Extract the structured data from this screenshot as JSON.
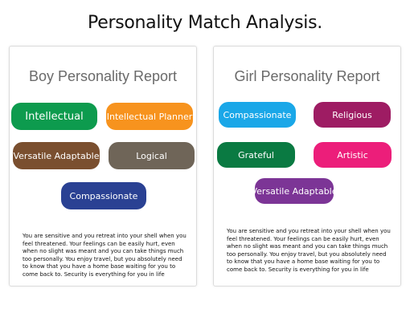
{
  "page": {
    "title": "Personality Match Analysis."
  },
  "colors": {
    "green": "#0d9b4e",
    "orange": "#f7931e",
    "brown": "#7a4f2f",
    "taupe": "#6f6558",
    "navy": "#2a4193",
    "sky": "#1aa7e8",
    "plum": "#9e1c63",
    "forest": "#0a7a42",
    "pink": "#ec1e7a",
    "purple": "#7c3596"
  },
  "boy": {
    "heading": "Boy Personality Report",
    "traits": [
      "Intellectual",
      "Intellectual Planner",
      "Versatile Adaptable",
      "Logical",
      "Compassionate"
    ],
    "description": "You are sensitive and you retreat into your shell when you feel threatened. Your feelings can be easily hurt, even when no slight was meant and you can take things much too personally. You enjoy travel, but you absolutely need to know that you have a home base waiting for you to come back to. Security is everything for you in life"
  },
  "girl": {
    "heading": "Girl Personality Report",
    "traits": [
      "Compassionate",
      "Religious",
      "Grateful",
      "Artistic",
      "Versatile Adaptable"
    ],
    "description": "You are sensitive and you retreat into your shell when you feel threatened. Your feelings can be easily hurt, even when no slight was meant and you can take things much too personally. You enjoy travel, but you absolutely need to know that you have a home base waiting for you to come back to. Security is everything for you in life"
  }
}
